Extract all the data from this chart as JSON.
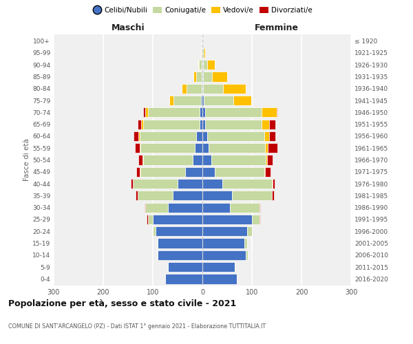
{
  "age_groups": [
    "0-4",
    "5-9",
    "10-14",
    "15-19",
    "20-24",
    "25-29",
    "30-34",
    "35-39",
    "40-44",
    "45-49",
    "50-54",
    "55-59",
    "60-64",
    "65-69",
    "70-74",
    "75-79",
    "80-84",
    "85-89",
    "90-94",
    "95-99",
    "100+"
  ],
  "birth_years": [
    "2016-2020",
    "2011-2015",
    "2006-2010",
    "2001-2005",
    "1996-2000",
    "1991-1995",
    "1986-1990",
    "1981-1985",
    "1976-1980",
    "1971-1975",
    "1966-1970",
    "1961-1965",
    "1956-1960",
    "1951-1955",
    "1946-1950",
    "1941-1945",
    "1936-1940",
    "1931-1935",
    "1926-1930",
    "1921-1925",
    "≤ 1920"
  ],
  "males": {
    "celibi": [
      75,
      70,
      90,
      90,
      95,
      100,
      70,
      60,
      50,
      35,
      20,
      15,
      12,
      5,
      5,
      3,
      2,
      1,
      2,
      0,
      0
    ],
    "coniugati": [
      0,
      0,
      2,
      2,
      5,
      10,
      45,
      70,
      90,
      90,
      100,
      110,
      115,
      115,
      105,
      55,
      30,
      12,
      5,
      2,
      0
    ],
    "vedovi": [
      0,
      0,
      0,
      0,
      0,
      0,
      0,
      0,
      0,
      1,
      1,
      1,
      2,
      3,
      5,
      8,
      10,
      5,
      2,
      1,
      0
    ],
    "divorziati": [
      0,
      0,
      0,
      0,
      0,
      2,
      2,
      5,
      5,
      8,
      8,
      10,
      10,
      8,
      5,
      0,
      0,
      0,
      0,
      0,
      0
    ]
  },
  "females": {
    "nubili": [
      70,
      65,
      88,
      85,
      90,
      100,
      55,
      60,
      40,
      25,
      18,
      12,
      10,
      5,
      5,
      3,
      2,
      2,
      2,
      0,
      0
    ],
    "coniugate": [
      0,
      0,
      3,
      5,
      10,
      15,
      60,
      80,
      100,
      100,
      110,
      115,
      115,
      115,
      115,
      60,
      40,
      18,
      8,
      3,
      0
    ],
    "vedove": [
      0,
      0,
      0,
      0,
      0,
      0,
      0,
      0,
      1,
      2,
      3,
      5,
      10,
      15,
      30,
      35,
      45,
      30,
      15,
      2,
      0
    ],
    "divorziate": [
      0,
      0,
      0,
      0,
      0,
      2,
      2,
      5,
      5,
      10,
      10,
      20,
      12,
      12,
      2,
      0,
      0,
      0,
      0,
      0,
      0
    ]
  },
  "color_celibi": "#4472c4",
  "color_coniugati": "#c5d9a0",
  "color_vedovi": "#ffc000",
  "color_divorziati": "#c00000",
  "bg_color": "#f0f0f0",
  "title": "Popolazione per età, sesso e stato civile - 2021",
  "subtitle": "COMUNE DI SANT'ARCANGELO (PZ) - Dati ISTAT 1° gennaio 2021 - Elaborazione TUTTITALIA.IT",
  "xlabel_males": "Maschi",
  "xlabel_females": "Femmine",
  "ylabel_left": "Fasce di età",
  "xlim": 300,
  "legend_labels": [
    "Celibi/Nubili",
    "Coniugati/e",
    "Vedovi/e",
    "Divorziati/e"
  ]
}
